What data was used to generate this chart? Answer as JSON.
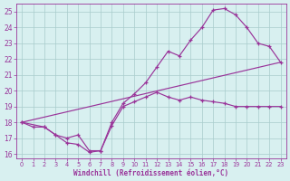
{
  "xlabel": "Windchill (Refroidissement éolien,°C)",
  "xlim": [
    -0.5,
    23.5
  ],
  "ylim": [
    15.7,
    25.5
  ],
  "xticks": [
    0,
    1,
    2,
    3,
    4,
    5,
    6,
    7,
    8,
    9,
    10,
    11,
    12,
    13,
    14,
    15,
    16,
    17,
    18,
    19,
    20,
    21,
    22,
    23
  ],
  "yticks": [
    16,
    17,
    18,
    19,
    20,
    21,
    22,
    23,
    24,
    25
  ],
  "bg_color": "#d8f0f0",
  "line_color": "#993399",
  "grid_color": "#a8cccc",
  "line1_x": [
    0,
    23
  ],
  "line1_y": [
    18.0,
    21.8
  ],
  "line2_x": [
    0,
    1,
    2,
    3,
    4,
    5,
    6,
    7,
    8,
    9,
    10,
    11,
    12,
    13,
    14,
    15,
    16,
    17,
    18,
    19,
    20,
    21,
    22,
    23
  ],
  "line2_y": [
    18.0,
    17.7,
    17.7,
    17.2,
    16.7,
    16.6,
    16.1,
    16.2,
    17.8,
    19.0,
    19.3,
    19.6,
    19.9,
    19.6,
    19.4,
    19.6,
    19.4,
    19.3,
    19.2,
    19.0,
    19.0,
    19.0,
    19.0,
    19.0
  ],
  "line3_x": [
    0,
    2,
    3,
    4,
    5,
    6,
    7,
    8,
    9,
    10,
    11,
    12,
    13,
    14,
    15,
    16,
    17,
    18,
    19,
    20,
    21,
    22,
    23
  ],
  "line3_y": [
    18.0,
    17.7,
    17.2,
    17.0,
    17.2,
    16.2,
    16.2,
    18.0,
    19.2,
    19.8,
    20.5,
    21.5,
    22.5,
    22.2,
    23.2,
    24.0,
    25.1,
    25.2,
    24.8,
    24.0,
    23.0,
    22.8,
    21.8
  ]
}
